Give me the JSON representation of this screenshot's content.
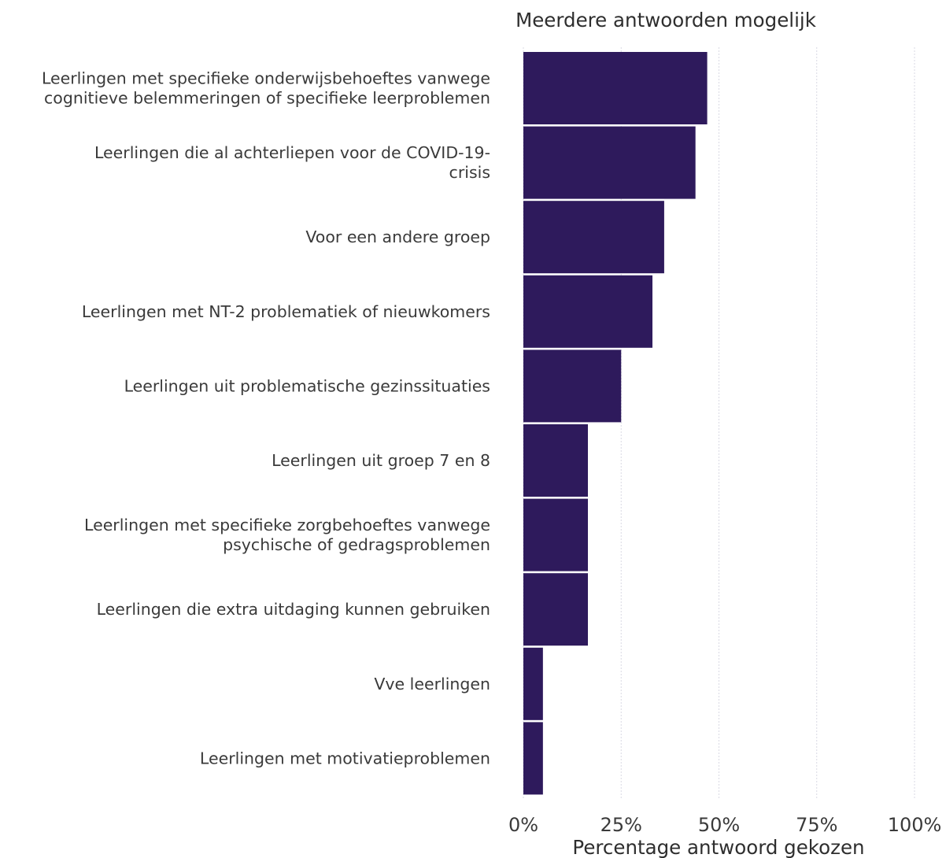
{
  "chart_data": {
    "type": "bar",
    "orientation": "horizontal",
    "title": "Meerdere antwoorden mogelijk",
    "xlabel": "Percentage antwoord gekozen",
    "ylabel": "",
    "xlim": [
      0,
      100
    ],
    "x_ticks": [
      0,
      25,
      50,
      75,
      100
    ],
    "x_tick_labels": [
      "0%",
      "25%",
      "50%",
      "75%",
      "100%"
    ],
    "grid": true,
    "bar_color": "#2e1a5c",
    "categories": [
      [
        "Leerlingen met specifieke onderwijsbehoeftes vanwege",
        "cognitieve belemmeringen of specifieke leerproblemen"
      ],
      [
        "Leerlingen die al achterliepen voor de COVID-19-",
        "crisis"
      ],
      [
        "Voor een andere groep"
      ],
      [
        "Leerlingen met NT-2 problematiek of nieuwkomers"
      ],
      [
        "Leerlingen uit problematische gezinssituaties"
      ],
      [
        "Leerlingen uit groep 7 en 8"
      ],
      [
        "Leerlingen met specifieke zorgbehoeftes vanwege",
        "psychische of gedragsproblemen"
      ],
      [
        "Leerlingen die extra uitdaging kunnen gebruiken"
      ],
      [
        "Vve leerlingen"
      ],
      [
        "Leerlingen met motivatieproblemen"
      ]
    ],
    "values": [
      47,
      44,
      36,
      33,
      25,
      16.5,
      16.5,
      16.5,
      5,
      5
    ]
  }
}
